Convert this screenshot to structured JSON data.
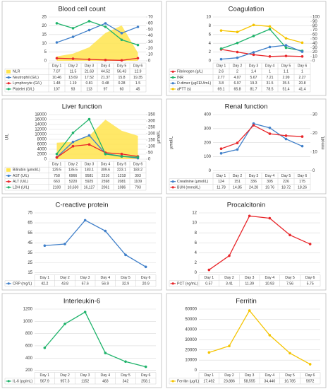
{
  "chart_data": [
    {
      "type": "line",
      "title": "Blood cell count",
      "categories": [
        "Day 1",
        "Day 2",
        "Day 3",
        "Day 4",
        "Day 5",
        "Day 6"
      ],
      "ylim": [
        0,
        25
      ],
      "yticks": [
        0,
        5,
        10,
        15,
        20,
        25
      ],
      "y2lim": [
        0,
        70
      ],
      "y2ticks": [
        0,
        10,
        20,
        30,
        40,
        50,
        60,
        70
      ],
      "y3lim": [
        0,
        125
      ],
      "series": [
        {
          "name": "NLR",
          "type": "area",
          "axis": "y2",
          "color": "#ffe44d",
          "values": [
            7.07,
            11.5,
            21.63,
            44.52,
            56.43,
            12.9
          ]
        },
        {
          "name": "Neutrophil (G/L)",
          "color": "#3f7fc9",
          "values": [
            10.46,
            13.69,
            17.52,
            21.37,
            15.8,
            19.35
          ]
        },
        {
          "name": "Lymphocyte (G/L)",
          "color": "#e8262a",
          "values": [
            1.48,
            1.19,
            0.81,
            0.48,
            0.28,
            1.5
          ]
        },
        {
          "name": "Platelet (G/L)",
          "axis": "y3",
          "color": "#1fb36b",
          "values": [
            107,
            93,
            113,
            97,
            60,
            45
          ]
        }
      ]
    },
    {
      "type": "line",
      "title": "Coagulation",
      "categories": [
        "Day 1",
        "Day 2",
        "Day 3",
        "Day 4",
        "Day 5",
        "Day 6"
      ],
      "ylim": [
        0,
        10
      ],
      "yticks": [
        0,
        2,
        4,
        6,
        8,
        10
      ],
      "y2lim": [
        0,
        100
      ],
      "y2ticks": [
        0,
        10,
        20,
        30,
        40,
        50,
        60,
        70,
        80,
        90,
        100
      ],
      "series": [
        {
          "name": "Fibrinogen (g/L)",
          "color": "#e8262a",
          "values": [
            2.6,
            2,
            1.4,
            1,
            1.1,
            1
          ]
        },
        {
          "name": "INR",
          "color": "#1fb36b",
          "values": [
            2.77,
            4.07,
            5.67,
            7.21,
            2.99,
            2.27
          ]
        },
        {
          "name": "D-dimer (µgFEU/mL)",
          "axis": "y2",
          "color": "#3f7fc9",
          "values": [
            3.8,
            6.97,
            19.3,
            31.5,
            35.5,
            20.8
          ]
        },
        {
          "name": "aPTT (s)",
          "axis": "y2",
          "color": "#f5c400",
          "values": [
            69.1,
            65.8,
            81.7,
            78.5,
            51.4,
            41.4
          ]
        }
      ]
    },
    {
      "type": "line",
      "title": "Liver function",
      "categories": [
        "Day 1",
        "Day 2",
        "Day 3",
        "Day 4",
        "Day 5",
        "Day 6"
      ],
      "ylabel": "U/L",
      "y2label": "µmol/L",
      "ylim": [
        0,
        18000
      ],
      "yticks": [
        0,
        2000,
        4000,
        6000,
        8000,
        10000,
        12000,
        14000,
        16000,
        18000
      ],
      "y2lim": [
        0,
        350
      ],
      "y2ticks": [
        0,
        50,
        100,
        150,
        200,
        250,
        300,
        350
      ],
      "series": [
        {
          "name": "Bilirubin (µmol/L)",
          "type": "area",
          "axis": "y2",
          "color": "#ffe44d",
          "values": [
            129.5,
            135.5,
            183.1,
            309.6,
            223.1,
            183.2
          ]
        },
        {
          "name": "AST (U/L)",
          "color": "#3f7fc9",
          "values": [
            758,
            6966,
            9581,
            2216,
            1218,
            393
          ]
        },
        {
          "name": "ALT (U/L)",
          "color": "#e8262a",
          "values": [
            663,
            5220,
            5925,
            2598,
            2081,
            1109
          ]
        },
        {
          "name": "LDH (U/L)",
          "color": "#1fb36b",
          "values": [
            2100,
            10630,
            16127,
            2061,
            1086,
            793
          ],
          "value_labels": [
            "2100",
            "10,630",
            "16,127",
            "2061",
            "1086",
            "793"
          ]
        }
      ]
    },
    {
      "type": "line",
      "title": "Renal function",
      "categories": [
        "Day 1",
        "Day 2",
        "Day 3",
        "Day 4",
        "Day 5",
        "Day 6"
      ],
      "ylabel": "µmol/L",
      "y2label": "mmol/L",
      "ylim": [
        0,
        400
      ],
      "yticks": [
        0,
        100,
        200,
        300,
        400
      ],
      "y2lim": [
        0,
        30
      ],
      "y2ticks": [
        0,
        10,
        20,
        30
      ],
      "series": [
        {
          "name": "Creatinine (µmol/L)",
          "color": "#3f7fc9",
          "values": [
            124,
            151,
            336,
            305,
            226,
            175
          ]
        },
        {
          "name": "BUN (mmol/L)",
          "axis": "y2",
          "color": "#e8262a",
          "values": [
            11.78,
            14.85,
            24.28,
            19.76,
            18.72,
            18.26
          ]
        }
      ]
    },
    {
      "type": "line",
      "title": "C-reactive protein",
      "categories": [
        "Day 1",
        "Day 2",
        "Day 3",
        "Day 4",
        "Day 5",
        "Day 6"
      ],
      "ylim": [
        15,
        75
      ],
      "yticks": [
        15,
        25,
        35,
        45,
        55,
        65,
        75
      ],
      "series": [
        {
          "name": "CRP (mg/L)",
          "color": "#3f7fc9",
          "values": [
            42.2,
            43.8,
            67.6,
            56.9,
            32.9,
            20.9
          ]
        }
      ]
    },
    {
      "type": "line",
      "title": "Procalcitonin",
      "categories": [
        "Day 1",
        "Day 2",
        "Day 3",
        "Day 4",
        "Day 5",
        "Day 6"
      ],
      "ylim": [
        0,
        12
      ],
      "yticks": [
        0,
        2,
        4,
        6,
        8,
        10,
        12
      ],
      "series": [
        {
          "name": "PCT (ng/mL)",
          "color": "#e8262a",
          "values": [
            0.57,
            3.41,
            11.39,
            10.93,
            7.56,
            5.75
          ]
        }
      ]
    },
    {
      "type": "line",
      "title": "Interleukin-6",
      "categories": [
        "Day 1",
        "Day 2",
        "Day 3",
        "Day 4",
        "Day 5",
        "Day 6"
      ],
      "ylim": [
        200,
        1200
      ],
      "yticks": [
        200,
        400,
        600,
        800,
        1000,
        1200
      ],
      "series": [
        {
          "name": "IL-6 (pg/mL)",
          "color": "#1fb36b",
          "values": [
            567.9,
            957.3,
            1152,
            483,
            342,
            258.1
          ]
        }
      ]
    },
    {
      "type": "line",
      "title": "Ferritin",
      "categories": [
        "Day 1",
        "Day 2",
        "Day 3",
        "Day 4",
        "Day 5",
        "Day 6"
      ],
      "ylim": [
        0,
        60000
      ],
      "yticks": [
        0,
        10000,
        20000,
        30000,
        40000,
        50000,
        60000
      ],
      "series": [
        {
          "name": "Ferritin (µg/L)",
          "color": "#f5c400",
          "values": [
            17492,
            23886,
            58555,
            34440,
            16785,
            5972
          ],
          "value_labels": [
            "17,492",
            "23,886",
            "58,555",
            "34,440",
            "16,785",
            "5972"
          ]
        }
      ]
    }
  ]
}
